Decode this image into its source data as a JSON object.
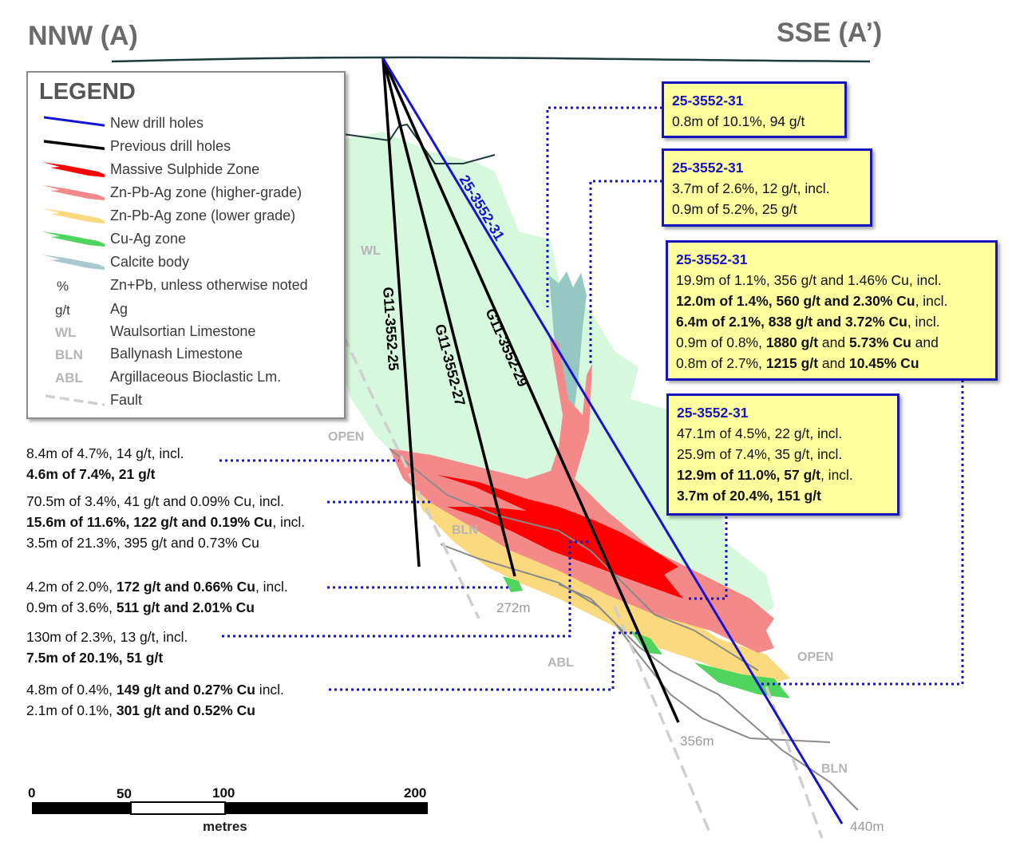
{
  "titles": {
    "left": "NNW (A)",
    "right": "SSE (A’)"
  },
  "legend": {
    "title": "LEGEND",
    "items": [
      {
        "symbol": "blue-line",
        "label": "New drill holes"
      },
      {
        "symbol": "black-line",
        "label": "Previous drill holes"
      },
      {
        "symbol": "red-swatch",
        "label": "Massive Sulphide Zone"
      },
      {
        "symbol": "pink-swatch",
        "label": "Zn-Pb-Ag zone (higher-grade)"
      },
      {
        "symbol": "yellow-swatch",
        "label": "Zn-Pb-Ag zone (lower grade)"
      },
      {
        "symbol": "green-swatch",
        "label": "Cu-Ag zone"
      },
      {
        "symbol": "blue-grey-swatch",
        "label": "Calcite body"
      },
      {
        "abbr": "%",
        "label": "Zn+Pb, unless otherwise noted"
      },
      {
        "abbr": "g/t",
        "label": "Ag"
      },
      {
        "abbr": "WL",
        "label": "Waulsortian Limestone"
      },
      {
        "abbr": "BLN",
        "label": "Ballynash Limestone"
      },
      {
        "abbr": "ABL",
        "label": "Argillaceous Bioclastic Lm."
      },
      {
        "symbol": "dashed-grey-line",
        "label": "Fault"
      }
    ]
  },
  "colors": {
    "new_hole": "#1414d2",
    "previous_hole": "#000000",
    "massive_sulphide": "#ff0000",
    "zn_high": "#f4898a",
    "zn_low": "#fbd97f",
    "cu_ag": "#4fd45d",
    "calcite": "#95c8c3",
    "wl_body": "#d6f8dc",
    "callout_fill": "#ffff9e",
    "callout_border": "#1515c0",
    "fault": "#cfcfcf"
  },
  "drill_holes": {
    "new": [
      {
        "label": "25-3552-31"
      }
    ],
    "previous": [
      {
        "label": "G11-3552-25"
      },
      {
        "label": "G11-3552-27"
      },
      {
        "label": "G11-3552-29"
      }
    ]
  },
  "callouts": [
    {
      "hole": "25-3552-31",
      "lines": [
        [
          {
            "t": "0.8m of 10.1%, 94 g/t",
            "b": false
          }
        ]
      ]
    },
    {
      "hole": "25-3552-31",
      "lines": [
        [
          {
            "t": "3.7m of 2.6%, 12 g/t, incl.",
            "b": false
          }
        ],
        [
          {
            "t": "0.9m of 5.2%, 25 g/t",
            "b": false
          }
        ]
      ]
    },
    {
      "hole": "25-3552-31",
      "lines": [
        [
          {
            "t": "19.9m of 1.1%, 356 g/t and 1.46% Cu, incl.",
            "b": false
          }
        ],
        [
          {
            "t": "12.0m of 1.4%, 560 g/t and 2.30% Cu",
            "b": true
          },
          {
            "t": ", incl.",
            "b": false
          }
        ],
        [
          {
            "t": "6.4m of 2.1%, 838 g/t and 3.72% Cu",
            "b": true
          },
          {
            "t": ", incl.",
            "b": false
          }
        ],
        [
          {
            "t": "0.9m of 0.8%, ",
            "b": false
          },
          {
            "t": "1880 g/t",
            "b": true
          },
          {
            "t": " and ",
            "b": false
          },
          {
            "t": "5.73% Cu",
            "b": true
          },
          {
            "t": " and",
            "b": false
          }
        ],
        [
          {
            "t": "0.8m of 2.7%, ",
            "b": false
          },
          {
            "t": "1215 g/t",
            "b": true
          },
          {
            "t": " and ",
            "b": false
          },
          {
            "t": "10.45% Cu",
            "b": true
          }
        ]
      ]
    },
    {
      "hole": "25-3552-31",
      "lines": [
        [
          {
            "t": "47.1m of 4.5%, 22 g/t, incl.",
            "b": false
          }
        ],
        [
          {
            "t": "25.9m of 7.4%, 35 g/t, incl.",
            "b": false
          }
        ],
        [
          {
            "t": "12.9m of 11.0%, 57 g/t",
            "b": true
          },
          {
            "t": ", incl.",
            "b": false
          }
        ],
        [
          {
            "t": "3.7m of 20.4%, 151 g/t",
            "b": true
          }
        ]
      ]
    }
  ],
  "left_annotations": [
    {
      "lines": [
        [
          {
            "t": "8.4m of 4.7%, 14 g/t, incl.",
            "b": false
          }
        ],
        [
          {
            "t": "4.6m of 7.4%, 21 g/t",
            "b": true
          }
        ]
      ]
    },
    {
      "lines": [
        [
          {
            "t": "70.5m of 3.4%, 41 g/t and 0.09% Cu, incl.",
            "b": false
          }
        ],
        [
          {
            "t": "15.6m of 11.6%, 122 g/t and 0.19% Cu",
            "b": true
          },
          {
            "t": ", incl.",
            "b": false
          }
        ],
        [
          {
            "t": "3.5m of 21.3%, 395 g/t and 0.73% Cu",
            "b": false
          }
        ]
      ]
    },
    {
      "lines": [
        [
          {
            "t": "4.2m of 2.0%, ",
            "b": false
          },
          {
            "t": "172 g/t and 0.66% Cu",
            "b": true
          },
          {
            "t": ", incl.",
            "b": false
          }
        ],
        [
          {
            "t": "0.9m of 3.6%, ",
            "b": false
          },
          {
            "t": "511 g/t and 2.01% Cu",
            "b": true
          }
        ]
      ]
    },
    {
      "lines": [
        [
          {
            "t": "130m of 2.3%, 13 g/t, incl.",
            "b": false
          }
        ],
        [
          {
            "t": "7.5m of 20.1%, 51 g/t",
            "b": true
          }
        ]
      ]
    },
    {
      "lines": [
        [
          {
            "t": "4.8m of 0.4%, ",
            "b": false
          },
          {
            "t": "149 g/t and 0.27% Cu",
            "b": true
          },
          {
            "t": " incl.",
            "b": false
          }
        ],
        [
          {
            "t": "2.1m of 0.1%, ",
            "b": false
          },
          {
            "t": "301 g/t and 0.52% Cu",
            "b": true
          }
        ]
      ]
    }
  ],
  "unit_labels": {
    "wl": "WL",
    "open_1": "OPEN",
    "bln_1": "BLN",
    "abl": "ABL",
    "open_2": "OPEN",
    "bln_2": "BLN"
  },
  "depth_labels": {
    "d272": "272m",
    "d356": "356m",
    "d440": "440m"
  },
  "scale_bar": {
    "ticks": [
      "0",
      "50",
      "100",
      "200"
    ],
    "unit": "metres"
  }
}
